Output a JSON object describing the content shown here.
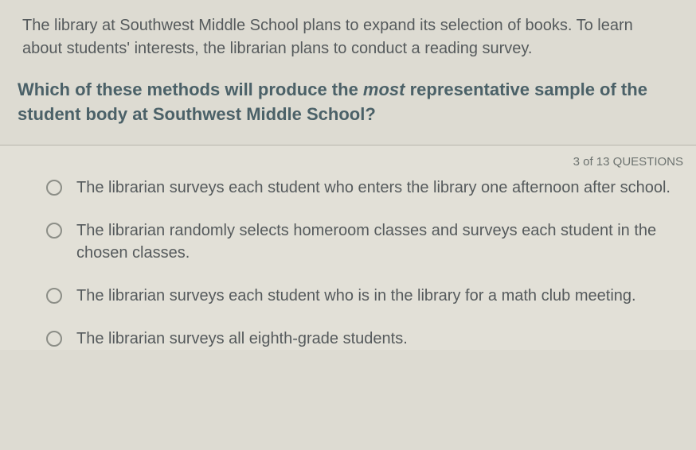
{
  "context": "The library at Southwest Middle School plans to expand its selection of books. To learn about students' interests, the librarian plans to conduct a reading survey.",
  "question_prefix": "Which of these methods will produce the ",
  "question_emph": "most",
  "question_suffix": " representative sample of the student body at Southwest Middle School?",
  "counter": "3 of 13 QUESTIONS",
  "options": [
    "The librarian surveys each student who enters the library one afternoon after school.",
    "The librarian randomly selects homeroom classes and surveys each student in the chosen classes.",
    "The librarian surveys each student who is in the library for a math club meeting.",
    "The librarian surveys all eighth-grade students."
  ],
  "colors": {
    "background": "#dddbd2",
    "text_body": "#555a5c",
    "text_question": "#4b6168",
    "divider": "#b8b6ac",
    "radio_border": "#8c8e87"
  }
}
